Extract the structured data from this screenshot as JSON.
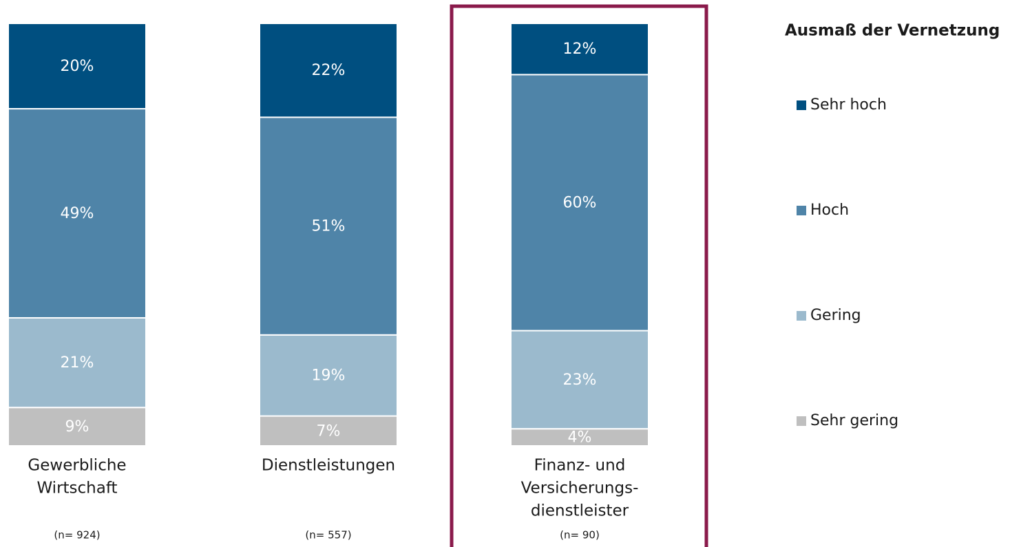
{
  "chart_data": {
    "type": "stacked_bar",
    "legend_title": "Ausmaß der Vernetzung",
    "categories": [
      [
        "Gewerbliche",
        "Wirtschaft"
      ],
      [
        "Dienstleistungen"
      ],
      [
        "Finanz- und",
        "Versicherungs-",
        "dienstleister"
      ]
    ],
    "sample_labels": [
      "(n= 924)",
      "(n= 557)",
      "(n= 90)"
    ],
    "ylim": [
      0,
      99
    ],
    "series": [
      {
        "name": "Sehr gering",
        "color": "#bfbfbf",
        "values": [
          9,
          7,
          4
        ],
        "value_labels": [
          "9%",
          "7%",
          "4%"
        ]
      },
      {
        "name": "Gering",
        "color": "#9bbacd",
        "values": [
          21,
          19,
          23
        ],
        "value_labels": [
          "21%",
          "19%",
          "23%"
        ]
      },
      {
        "name": "Hoch",
        "color": "#4f84a8",
        "values": [
          49,
          51,
          60
        ],
        "value_labels": [
          "49%",
          "51%",
          "60%"
        ]
      },
      {
        "name": "Sehr hoch",
        "color": "#004f80",
        "values": [
          20,
          22,
          12
        ],
        "value_labels": [
          "20%",
          "22%",
          "12%"
        ]
      }
    ]
  }
}
